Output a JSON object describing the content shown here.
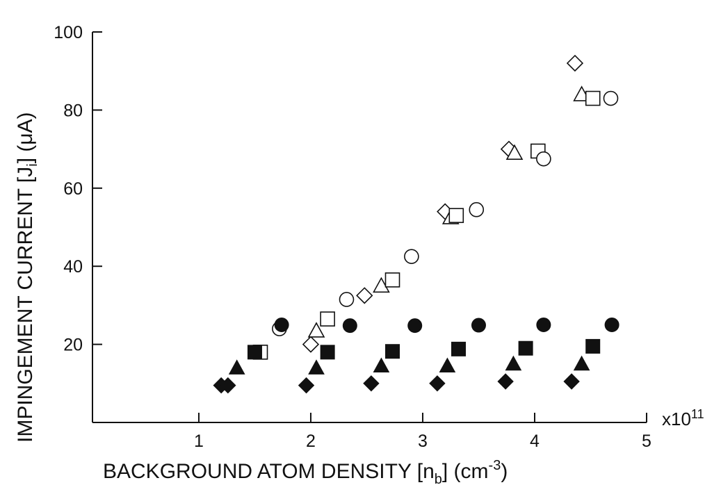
{
  "chart_data": {
    "type": "scatter",
    "xlabel": "BACKGROUND ATOM DENSITY [n",
    "xlabel_sub": "b",
    "xlabel_unit": "] (cm",
    "xlabel_sup": "-3",
    "xlabel_end": ")",
    "ylabel": "IMPINGEMENT CURRENT [J",
    "ylabel_sub": "i",
    "ylabel_unit": "] (μA)",
    "x_multiplier": "x10",
    "x_multiplier_exp": "11",
    "xlim": [
      0.05,
      5
    ],
    "ylim": [
      0,
      100
    ],
    "x_ticks": [
      1,
      2,
      3,
      4,
      5
    ],
    "x_tick_labels": [
      "1",
      "2",
      "3",
      "4",
      "5"
    ],
    "y_ticks": [
      20,
      40,
      60,
      80,
      100
    ],
    "y_tick_labels": [
      "20",
      "40",
      "60",
      "80",
      "100"
    ],
    "grid": false,
    "series": [
      {
        "marker": "diamond",
        "filled": false,
        "points": [
          [
            2.0,
            20.0
          ],
          [
            2.48,
            32.5
          ],
          [
            3.2,
            54.0
          ],
          [
            3.77,
            70.0
          ],
          [
            4.36,
            92.0
          ]
        ]
      },
      {
        "marker": "triangle",
        "filled": false,
        "points": [
          [
            2.05,
            23.5
          ],
          [
            2.63,
            35.0
          ],
          [
            3.25,
            52.5
          ],
          [
            3.82,
            69.0
          ],
          [
            4.42,
            84.0
          ]
        ]
      },
      {
        "marker": "square",
        "filled": false,
        "points": [
          [
            1.55,
            18.0
          ],
          [
            2.15,
            26.5
          ],
          [
            2.73,
            36.5
          ],
          [
            3.3,
            53.0
          ],
          [
            4.03,
            69.5
          ],
          [
            4.52,
            83.0
          ]
        ]
      },
      {
        "marker": "circle",
        "filled": false,
        "points": [
          [
            1.72,
            24.0
          ],
          [
            2.32,
            31.5
          ],
          [
            2.9,
            42.5
          ],
          [
            3.48,
            54.5
          ],
          [
            4.08,
            67.5
          ],
          [
            4.68,
            83.0
          ]
        ]
      },
      {
        "marker": "circle",
        "filled": true,
        "points": [
          [
            1.74,
            25.0
          ],
          [
            2.35,
            24.8
          ],
          [
            2.93,
            24.8
          ],
          [
            3.5,
            24.9
          ],
          [
            4.08,
            25.0
          ],
          [
            4.69,
            25.0
          ]
        ]
      },
      {
        "marker": "square",
        "filled": true,
        "points": [
          [
            1.5,
            18.0
          ],
          [
            2.15,
            18.0
          ],
          [
            2.73,
            18.2
          ],
          [
            3.32,
            18.8
          ],
          [
            3.92,
            19.0
          ],
          [
            4.52,
            19.5
          ]
        ]
      },
      {
        "marker": "triangle",
        "filled": true,
        "points": [
          [
            1.34,
            14.0
          ],
          [
            2.05,
            14.0
          ],
          [
            2.63,
            14.5
          ],
          [
            3.22,
            14.5
          ],
          [
            3.81,
            15.0
          ],
          [
            4.42,
            15.0
          ]
        ]
      },
      {
        "marker": "diamond",
        "filled": true,
        "points": [
          [
            1.2,
            9.5
          ],
          [
            1.26,
            9.5
          ],
          [
            1.96,
            9.5
          ],
          [
            2.54,
            10.0
          ],
          [
            3.13,
            10.0
          ],
          [
            3.74,
            10.5
          ],
          [
            4.33,
            10.5
          ]
        ]
      }
    ]
  }
}
